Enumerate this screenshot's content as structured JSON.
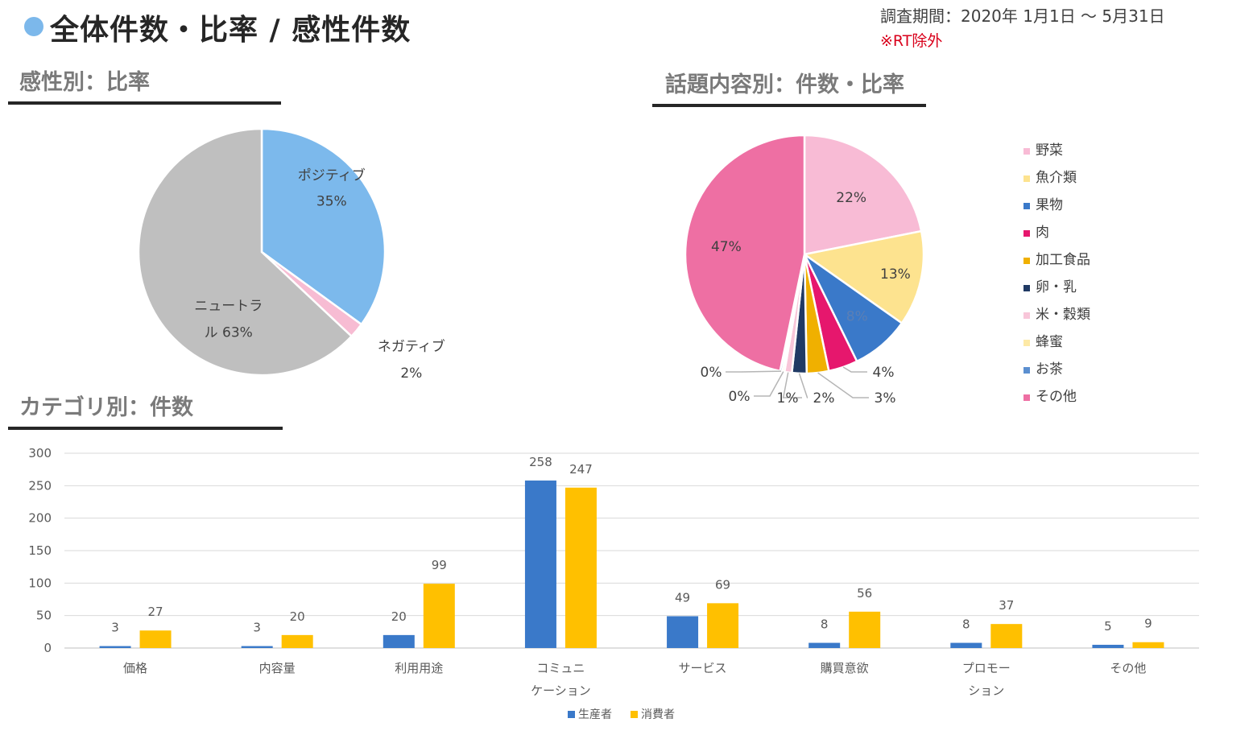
{
  "header": {
    "title": "全体件数・比率 / 感性件数",
    "period": "調査期間：2020年 1月1日 ～ 5月31日",
    "note": "※RT除外"
  },
  "sections": {
    "sentiment": "感性別：比率",
    "topic": "話題内容別：件数・比率",
    "category": "カテゴリ別：件数"
  },
  "colors": {
    "positive": "#7cb9ec",
    "negative": "#f7bcd3",
    "neutral": "#bfbfbf",
    "producer": "#3a79c9",
    "consumer": "#ffc000"
  },
  "chart_data": [
    {
      "type": "pie",
      "categories": [
        "ポジティブ",
        "ネガティブ",
        "ニュートラル"
      ],
      "values": [
        35,
        2,
        63
      ],
      "labels": [
        [
          "ポジティブ",
          "35%"
        ],
        [
          "ネガティブ",
          "2%"
        ],
        [
          "ニュートラ",
          "ル 63%"
        ]
      ],
      "colors": [
        "#7cb9ec",
        "#f7bcd3",
        "#bfbfbf"
      ]
    },
    {
      "type": "pie",
      "categories": [
        "野菜",
        "魚介類",
        "果物",
        "肉",
        "加工食品",
        "卵・乳",
        "米・穀類",
        "蜂蜜",
        "お茶",
        "その他"
      ],
      "values": [
        22,
        13,
        8,
        4,
        3,
        2,
        1,
        0,
        0,
        47
      ],
      "labels": [
        "22%",
        "13%",
        "8%",
        "4%",
        "3%",
        "2%",
        "1%",
        "0%",
        "0%",
        "47%"
      ],
      "colors": [
        "#f8bbd5",
        "#fde38f",
        "#3a79c9",
        "#e6176d",
        "#f0b000",
        "#203a64",
        "#f8c6d9",
        "#fde9a6",
        "#5b8fd0",
        "#ee6fa3"
      ],
      "legend": "right"
    },
    {
      "type": "bar",
      "categories": [
        "価格",
        "内容量",
        "利用用途",
        "コミュニケーション",
        "サービス",
        "購買意欲",
        "プロモーション",
        "その他"
      ],
      "category_lines": [
        [
          "価格"
        ],
        [
          "内容量"
        ],
        [
          "利用用途"
        ],
        [
          "コミュニ",
          "ケーション"
        ],
        [
          "サービス"
        ],
        [
          "購買意欲"
        ],
        [
          "プロモー",
          "ション"
        ],
        [
          "その他"
        ]
      ],
      "series": [
        {
          "name": "生産者",
          "values": [
            3,
            3,
            20,
            258,
            49,
            8,
            8,
            5
          ]
        },
        {
          "name": "消費者",
          "values": [
            27,
            20,
            99,
            247,
            69,
            56,
            37,
            9
          ]
        }
      ],
      "ylim": [
        0,
        300
      ],
      "yticks": [
        0,
        50,
        100,
        150,
        200,
        250,
        300
      ],
      "grid": true,
      "legend": "bottom"
    }
  ]
}
